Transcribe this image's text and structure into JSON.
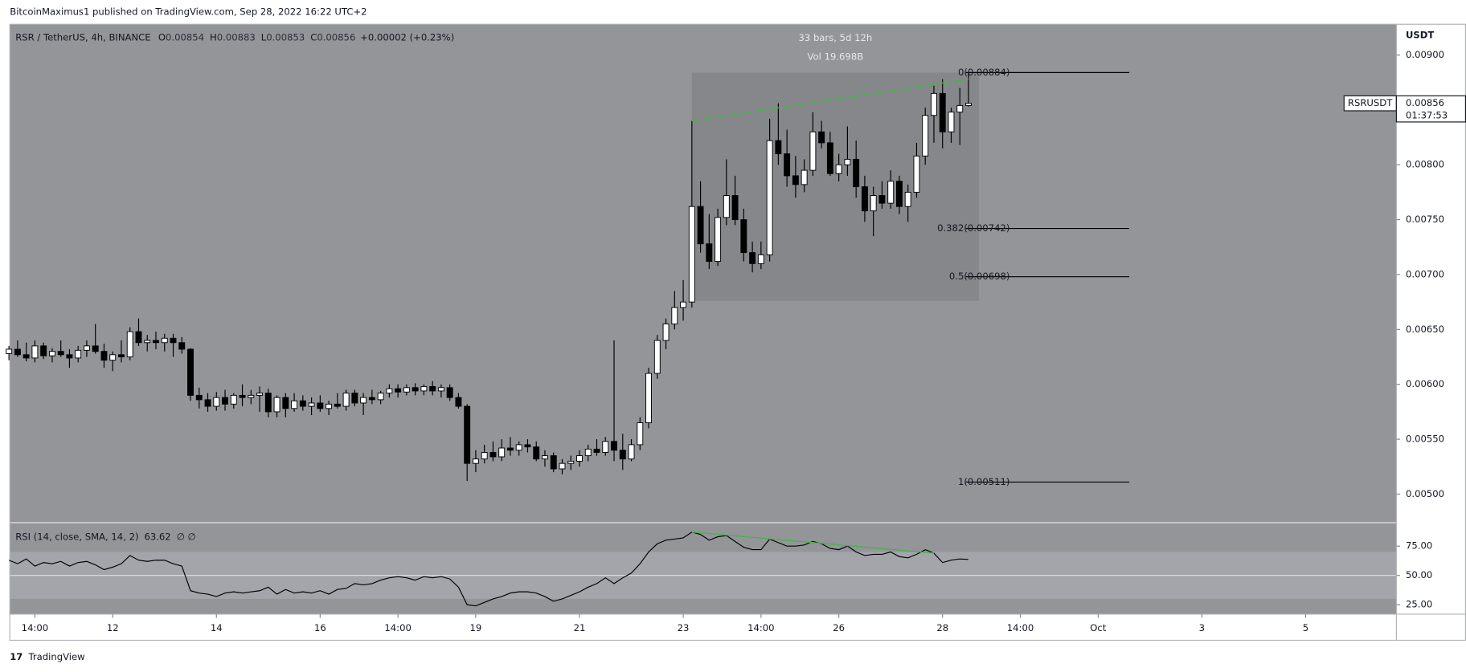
{
  "header": {
    "published": "BitcoinMaximus1 published on TradingView.com, Sep 28, 2022 16:22 UTC+2",
    "footer": "TradingView"
  },
  "chart_data": {
    "type": "candlestick",
    "title": "RSR / TetherUS, 4h, BINANCE",
    "ohlc_labels": [
      "O",
      "H",
      "L",
      "C"
    ],
    "change": "+0.00002 (+0.23%)",
    "symbol": "RSRUSDT",
    "countdown": "01:37:53",
    "axis_unit": "USDT",
    "up_color": "#ffffff",
    "down_color": "#000000",
    "pane_color": "#939599",
    "box_color": "#86878b",
    "trend_color": "#4caf50",
    "xlim": [
      0.1,
      160.5
    ],
    "xticks": [
      {
        "value": 3,
        "label": "14:00"
      },
      12,
      {
        "value": 24,
        "label": "14"
      },
      {
        "value": 36,
        "label": "16"
      },
      {
        "value": 45,
        "label": "14:00"
      },
      {
        "value": 54,
        "label": "19"
      },
      {
        "value": 66,
        "label": "21"
      },
      {
        "value": 78,
        "label": "23"
      },
      {
        "value": 87,
        "label": "14:00"
      },
      {
        "value": 96,
        "label": "26"
      },
      {
        "value": 108,
        "label": "28"
      },
      {
        "value": 117,
        "label": "14:00"
      },
      {
        "value": 126,
        "label": "Oct"
      },
      {
        "value": 138,
        "label": "3"
      },
      {
        "value": 150,
        "label": "5"
      }
    ],
    "ylim": [
      0.00474,
      0.00928
    ],
    "yticks": [
      {
        "value": 0.005,
        "label": "0.00500"
      },
      {
        "value": 0.0055,
        "label": "0.00550"
      },
      {
        "value": 0.006,
        "label": "0.00600"
      },
      {
        "value": 0.0065,
        "label": "0.00650"
      },
      {
        "value": 0.007,
        "label": "0.00700"
      },
      {
        "value": 0.0075,
        "label": "0.00750"
      },
      {
        "value": 0.008,
        "label": "0.00800"
      },
      {
        "value": 0.0085,
        "label": "0.00850"
      },
      {
        "value": 0.009,
        "label": "0.00900"
      }
    ],
    "candles": [
      [
        0.00628,
        0.00635,
        0.00622,
        0.00632
      ],
      [
        0.00632,
        0.0064,
        0.00625,
        0.00627
      ],
      [
        0.00627,
        0.00638,
        0.00621,
        0.00624
      ],
      [
        0.00624,
        0.0064,
        0.0062,
        0.00635
      ],
      [
        0.00635,
        0.00638,
        0.00623,
        0.00626
      ],
      [
        0.00626,
        0.00633,
        0.0062,
        0.0063
      ],
      [
        0.0063,
        0.0064,
        0.00625,
        0.00627
      ],
      [
        0.00627,
        0.00632,
        0.00615,
        0.00624
      ],
      [
        0.00624,
        0.00635,
        0.0062,
        0.00631
      ],
      [
        0.00631,
        0.0064,
        0.00625,
        0.00635
      ],
      [
        0.00635,
        0.00655,
        0.00628,
        0.0063
      ],
      [
        0.0063,
        0.00637,
        0.00615,
        0.00622
      ],
      [
        0.00622,
        0.0063,
        0.00612,
        0.00627
      ],
      [
        0.00627,
        0.0064,
        0.0062,
        0.00625
      ],
      [
        0.00625,
        0.00652,
        0.00622,
        0.00648
      ],
      [
        0.00648,
        0.0066,
        0.00635,
        0.00638
      ],
      [
        0.00638,
        0.00645,
        0.0063,
        0.0064
      ],
      [
        0.0064,
        0.00648,
        0.00632,
        0.00638
      ],
      [
        0.00638,
        0.00646,
        0.0063,
        0.00642
      ],
      [
        0.00642,
        0.00646,
        0.00625,
        0.00638
      ],
      [
        0.00638,
        0.00643,
        0.00628,
        0.00632
      ],
      [
        0.00632,
        0.00633,
        0.00585,
        0.0059
      ],
      [
        0.0059,
        0.00597,
        0.00578,
        0.00586
      ],
      [
        0.00586,
        0.00592,
        0.00575,
        0.0058
      ],
      [
        0.0058,
        0.00593,
        0.00576,
        0.00588
      ],
      [
        0.00588,
        0.00595,
        0.00576,
        0.00582
      ],
      [
        0.00582,
        0.00592,
        0.00578,
        0.0059
      ],
      [
        0.0059,
        0.006,
        0.0058,
        0.00588
      ],
      [
        0.00588,
        0.00595,
        0.00582,
        0.0059
      ],
      [
        0.0059,
        0.00598,
        0.00575,
        0.00592
      ],
      [
        0.00592,
        0.00596,
        0.0057,
        0.00575
      ],
      [
        0.00575,
        0.0059,
        0.0057,
        0.00588
      ],
      [
        0.00588,
        0.00592,
        0.0057,
        0.00578
      ],
      [
        0.00578,
        0.00592,
        0.00575,
        0.00585
      ],
      [
        0.00585,
        0.0059,
        0.00576,
        0.0058
      ],
      [
        0.0058,
        0.00588,
        0.00572,
        0.00583
      ],
      [
        0.00583,
        0.0059,
        0.00575,
        0.00578
      ],
      [
        0.00578,
        0.00585,
        0.00572,
        0.00582
      ],
      [
        0.00582,
        0.00592,
        0.00578,
        0.0058
      ],
      [
        0.0058,
        0.00595,
        0.00576,
        0.00592
      ],
      [
        0.00592,
        0.00595,
        0.0058,
        0.00583
      ],
      [
        0.00583,
        0.00592,
        0.00572,
        0.00588
      ],
      [
        0.00588,
        0.00595,
        0.00582,
        0.00586
      ],
      [
        0.00586,
        0.00594,
        0.00582,
        0.00592
      ],
      [
        0.00592,
        0.006,
        0.00588,
        0.00596
      ],
      [
        0.00596,
        0.006,
        0.00588,
        0.00593
      ],
      [
        0.00593,
        0.006,
        0.0059,
        0.00597
      ],
      [
        0.00597,
        0.00601,
        0.0059,
        0.00594
      ],
      [
        0.00594,
        0.006,
        0.0059,
        0.00598
      ],
      [
        0.00598,
        0.00603,
        0.0059,
        0.00594
      ],
      [
        0.00594,
        0.006,
        0.00588,
        0.00597
      ],
      [
        0.00597,
        0.006,
        0.00585,
        0.00588
      ],
      [
        0.00588,
        0.00592,
        0.00578,
        0.0058
      ],
      [
        0.0058,
        0.00582,
        0.00512,
        0.00528
      ],
      [
        0.00528,
        0.0054,
        0.0052,
        0.00532
      ],
      [
        0.00532,
        0.00545,
        0.00528,
        0.00538
      ],
      [
        0.00538,
        0.00548,
        0.0053,
        0.00534
      ],
      [
        0.00534,
        0.0055,
        0.0053,
        0.00542
      ],
      [
        0.00542,
        0.00552,
        0.00535,
        0.0054
      ],
      [
        0.0054,
        0.00548,
        0.00535,
        0.00545
      ],
      [
        0.00545,
        0.0055,
        0.00538,
        0.00543
      ],
      [
        0.00543,
        0.00548,
        0.0053,
        0.00532
      ],
      [
        0.00532,
        0.0054,
        0.00525,
        0.00535
      ],
      [
        0.00535,
        0.00538,
        0.0052,
        0.00523
      ],
      [
        0.00523,
        0.00532,
        0.00518,
        0.00528
      ],
      [
        0.00528,
        0.00535,
        0.00522,
        0.0053
      ],
      [
        0.0053,
        0.0054,
        0.00525,
        0.00535
      ],
      [
        0.00535,
        0.00545,
        0.0053,
        0.00541
      ],
      [
        0.00541,
        0.0055,
        0.00535,
        0.00538
      ],
      [
        0.00538,
        0.00552,
        0.00535,
        0.00548
      ],
      [
        0.00548,
        0.0064,
        0.0053,
        0.0054
      ],
      [
        0.0054,
        0.00555,
        0.00522,
        0.00532
      ],
      [
        0.00532,
        0.0055,
        0.0053,
        0.00545
      ],
      [
        0.00545,
        0.0057,
        0.0054,
        0.00565
      ],
      [
        0.00565,
        0.00615,
        0.0056,
        0.0061
      ],
      [
        0.0061,
        0.00645,
        0.00605,
        0.0064
      ],
      [
        0.0064,
        0.0066,
        0.00632,
        0.00655
      ],
      [
        0.00655,
        0.00685,
        0.0065,
        0.0067
      ],
      [
        0.0067,
        0.00695,
        0.00658,
        0.00675
      ],
      [
        0.00675,
        0.0084,
        0.0067,
        0.00762
      ],
      [
        0.00762,
        0.00785,
        0.0072,
        0.00728
      ],
      [
        0.00728,
        0.00755,
        0.00705,
        0.00712
      ],
      [
        0.00712,
        0.0076,
        0.00708,
        0.00752
      ],
      [
        0.00752,
        0.00805,
        0.00745,
        0.00772
      ],
      [
        0.00772,
        0.0079,
        0.00745,
        0.0075
      ],
      [
        0.0075,
        0.0076,
        0.00712,
        0.0072
      ],
      [
        0.0072,
        0.0073,
        0.00702,
        0.0071
      ],
      [
        0.0071,
        0.0073,
        0.00705,
        0.00718
      ],
      [
        0.00718,
        0.00842,
        0.00712,
        0.00822
      ],
      [
        0.00822,
        0.00856,
        0.008,
        0.0081
      ],
      [
        0.0081,
        0.00832,
        0.0078,
        0.0079
      ],
      [
        0.0079,
        0.00808,
        0.0077,
        0.00782
      ],
      [
        0.00782,
        0.00805,
        0.00775,
        0.00795
      ],
      [
        0.00795,
        0.00848,
        0.0079,
        0.0083
      ],
      [
        0.0083,
        0.0084,
        0.00815,
        0.0082
      ],
      [
        0.0082,
        0.0083,
        0.0079,
        0.00792
      ],
      [
        0.00792,
        0.0081,
        0.00785,
        0.008
      ],
      [
        0.008,
        0.00835,
        0.0079,
        0.00805
      ],
      [
        0.00805,
        0.00822,
        0.0077,
        0.0078
      ],
      [
        0.0078,
        0.0079,
        0.00748,
        0.00758
      ],
      [
        0.00758,
        0.0078,
        0.00735,
        0.00772
      ],
      [
        0.00772,
        0.00785,
        0.0076,
        0.00765
      ],
      [
        0.00765,
        0.00795,
        0.0076,
        0.00785
      ],
      [
        0.00785,
        0.0079,
        0.00755,
        0.00762
      ],
      [
        0.00762,
        0.00782,
        0.00748,
        0.00775
      ],
      [
        0.00775,
        0.0082,
        0.0077,
        0.00808
      ],
      [
        0.00808,
        0.00852,
        0.008,
        0.00845
      ],
      [
        0.00845,
        0.00872,
        0.0082,
        0.00865
      ],
      [
        0.00865,
        0.00878,
        0.00815,
        0.0083
      ],
      [
        0.0083,
        0.00852,
        0.0082,
        0.00848
      ],
      [
        0.00848,
        0.0087,
        0.00818,
        0.00854
      ],
      [
        0.00854,
        0.00883,
        0.00853,
        0.00856
      ]
    ],
    "range_box": {
      "x": [
        79,
        112.2
      ],
      "y": [
        0.00676,
        0.00884
      ],
      "label": "33 bars, 5d 12h",
      "volume": "Vol 19.698B"
    },
    "fib_x": [
      110.7,
      129.6
    ],
    "fib_levels": [
      {
        "value": 0.00884,
        "label": "0(0.00884)"
      },
      {
        "value": 0.00742,
        "label": "0.382(0.00742)"
      },
      {
        "value": 0.00698,
        "label": "0.5(0.00698)"
      },
      {
        "value": 0.00511,
        "label": "1(0.00511)"
      }
    ],
    "trendline": [
      [
        79,
        0.0084
      ],
      [
        111,
        0.00878
      ]
    ],
    "rsi": {
      "title": "RSI (14, close, SMA, 14, 2)",
      "extra": "∅ ∅",
      "color": "#000000",
      "ylim": [
        17,
        95
      ],
      "band": [
        30,
        70
      ],
      "midline": 50,
      "yticks": [
        {
          "value": 25,
          "label": "25.00"
        },
        {
          "value": 50,
          "label": "50.00"
        },
        {
          "value": 75,
          "label": "75.00"
        }
      ],
      "values": [
        63,
        60,
        64,
        58,
        61,
        60,
        62,
        58,
        61,
        62,
        59,
        55,
        57,
        60,
        67,
        63,
        62,
        63,
        63,
        60,
        58,
        37,
        35,
        34,
        32,
        35,
        36,
        35,
        36,
        37,
        40,
        34,
        38,
        35,
        36,
        35,
        37,
        34,
        38,
        39,
        43,
        42,
        43,
        46,
        48,
        49,
        48,
        46,
        49,
        48,
        49,
        47,
        40,
        25,
        24,
        27,
        30,
        32,
        35,
        36,
        36,
        35,
        32,
        28,
        30,
        33,
        36,
        40,
        43,
        48,
        43,
        48,
        52,
        60,
        70,
        77,
        80,
        81,
        82,
        87,
        85,
        80,
        83,
        84,
        79,
        74,
        72,
        72,
        81,
        78,
        75,
        75,
        76,
        79,
        77,
        73,
        72,
        75,
        70,
        67,
        68,
        68,
        70,
        66,
        65,
        68,
        72,
        69,
        61,
        63,
        64,
        63.62
      ],
      "trendline": [
        [
          79,
          87
        ],
        [
          107,
          69
        ]
      ]
    }
  }
}
